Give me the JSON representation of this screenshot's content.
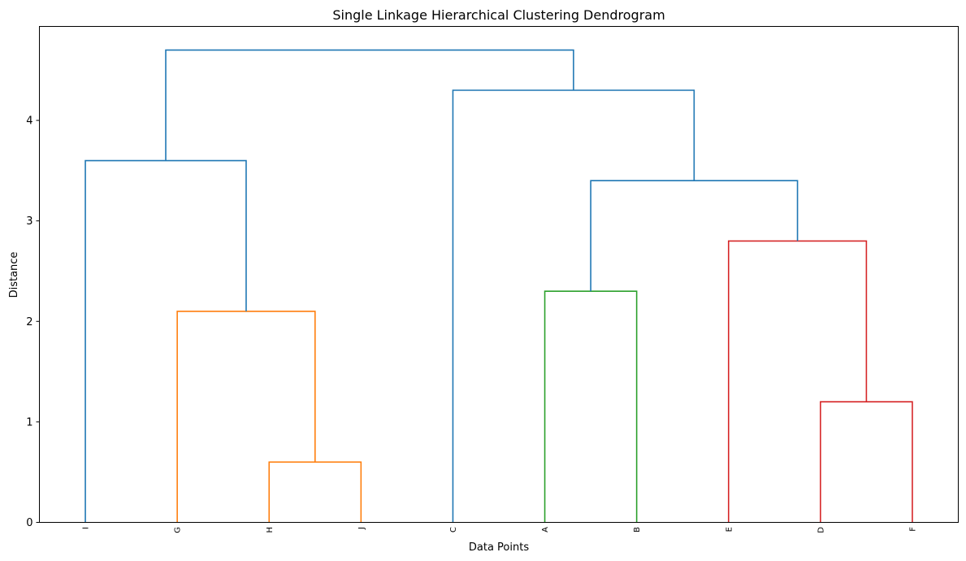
{
  "chart_data": {
    "type": "dendrogram",
    "title": "Single Linkage Hierarchical Clustering Dendrogram",
    "xlabel": "Data Points",
    "ylabel": "Distance",
    "ylim": [
      0,
      4.935
    ],
    "yticks": [
      0,
      1,
      2,
      3,
      4
    ],
    "grid": false,
    "leaves": [
      "I",
      "G",
      "H",
      "J",
      "C",
      "A",
      "B",
      "E",
      "D",
      "F"
    ],
    "colors": {
      "above_threshold": "#1f77b4",
      "cluster_1": "#ff7f0e",
      "cluster_2": "#2ca02c",
      "cluster_3": "#d62728"
    },
    "merges": [
      {
        "left": "leaf:2",
        "right": "leaf:3",
        "height": 0.6,
        "color": "cluster_1"
      },
      {
        "left": "leaf:1",
        "right": "merge:0",
        "height": 2.1,
        "color": "cluster_1"
      },
      {
        "left": "leaf:0",
        "right": "merge:1",
        "height": 3.6,
        "color": "above_threshold"
      },
      {
        "left": "leaf:5",
        "right": "leaf:6",
        "height": 2.3,
        "color": "cluster_2"
      },
      {
        "left": "leaf:8",
        "right": "leaf:9",
        "height": 1.2,
        "color": "cluster_3"
      },
      {
        "left": "leaf:7",
        "right": "merge:4",
        "height": 2.8,
        "color": "cluster_3"
      },
      {
        "left": "merge:3",
        "right": "merge:5",
        "height": 3.4,
        "color": "above_threshold"
      },
      {
        "left": "leaf:4",
        "right": "merge:6",
        "height": 4.3,
        "color": "above_threshold"
      },
      {
        "left": "merge:2",
        "right": "merge:7",
        "height": 4.7,
        "color": "above_threshold"
      }
    ]
  }
}
